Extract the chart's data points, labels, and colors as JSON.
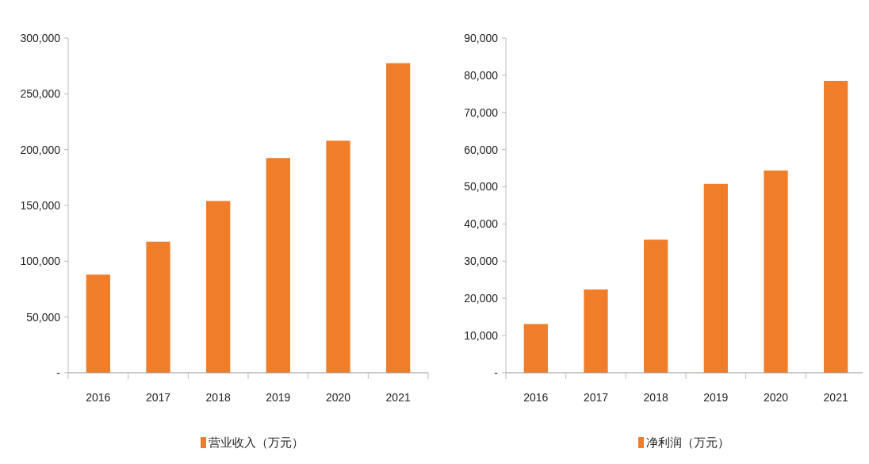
{
  "chart_data": [
    {
      "type": "bar",
      "categories": [
        "2016",
        "2017",
        "2018",
        "2019",
        "2020",
        "2021"
      ],
      "series": [
        {
          "name": "营业收入（万元）",
          "color": "#f07d2a",
          "values": [
            88000,
            117500,
            154000,
            192500,
            208000,
            277500
          ]
        }
      ],
      "ylim": [
        0,
        300000
      ],
      "yticks": [
        {
          "value": 0,
          "label": "-"
        },
        {
          "value": 50000,
          "label": "50,000"
        },
        {
          "value": 100000,
          "label": "100,000"
        },
        {
          "value": 150000,
          "label": "150,000"
        },
        {
          "value": 200000,
          "label": "200,000"
        },
        {
          "value": 250000,
          "label": "250,000"
        },
        {
          "value": 300000,
          "label": "300,000"
        }
      ],
      "legend": "bottom"
    },
    {
      "type": "bar",
      "categories": [
        "2016",
        "2017",
        "2018",
        "2019",
        "2020",
        "2021"
      ],
      "series": [
        {
          "name": "净利润（万元）",
          "color": "#f07d2a",
          "values": [
            13100,
            22400,
            35800,
            50800,
            54400,
            78500
          ]
        }
      ],
      "ylim": [
        0,
        90000
      ],
      "yticks": [
        {
          "value": 0,
          "label": "-"
        },
        {
          "value": 10000,
          "label": "10,000"
        },
        {
          "value": 20000,
          "label": "20,000"
        },
        {
          "value": 30000,
          "label": "30,000"
        },
        {
          "value": 40000,
          "label": "40,000"
        },
        {
          "value": 50000,
          "label": "50,000"
        },
        {
          "value": 60000,
          "label": "60,000"
        },
        {
          "value": 70000,
          "label": "70,000"
        },
        {
          "value": 80000,
          "label": "80,000"
        },
        {
          "value": 90000,
          "label": "90,000"
        }
      ],
      "legend": "bottom"
    }
  ]
}
